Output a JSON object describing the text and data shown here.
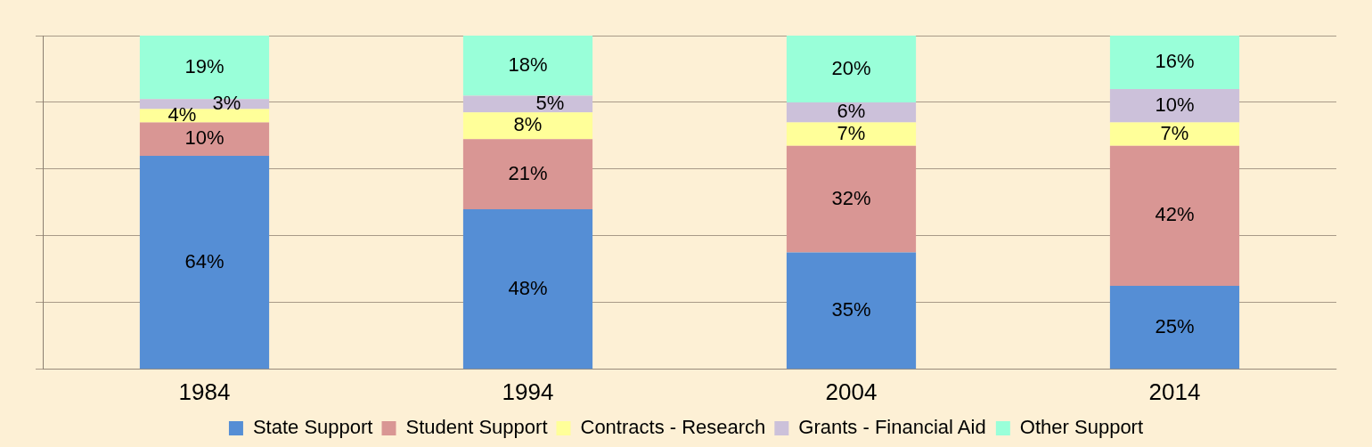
{
  "chart_data": {
    "type": "bar",
    "stacked": true,
    "categories": [
      "1984",
      "1994",
      "2004",
      "2014"
    ],
    "series": [
      {
        "name": "State Support",
        "color": "#558ed5",
        "values": [
          64,
          48,
          35,
          25
        ],
        "value_labels": [
          "64%",
          "48%",
          "35%",
          "25%"
        ]
      },
      {
        "name": "Student Support",
        "color": "#d99694",
        "values": [
          10,
          21,
          32,
          42
        ],
        "value_labels": [
          "10%",
          "21%",
          "32%",
          "42%"
        ]
      },
      {
        "name": "Contracts - Research",
        "color": "#ffff99",
        "values": [
          4,
          8,
          7,
          7
        ],
        "value_labels": [
          "4%",
          "8%",
          "7%",
          "7%"
        ]
      },
      {
        "name": "Grants - Financial Aid",
        "color": "#ccc1da",
        "values": [
          3,
          5,
          6,
          10
        ],
        "value_labels": [
          "3%",
          "5%",
          "6%",
          "10%"
        ]
      },
      {
        "name": "Other Support",
        "color": "#99ffd9",
        "values": [
          19,
          18,
          20,
          16
        ],
        "value_labels": [
          "19%",
          "18%",
          "20%",
          "16%"
        ]
      }
    ],
    "ylim": [
      0,
      100
    ],
    "yticks": [
      {
        "value": 0,
        "label": null
      },
      {
        "value": 20,
        "label": null
      },
      {
        "value": 40,
        "label": null
      },
      {
        "value": 60,
        "label": null
      },
      {
        "value": 80,
        "label": null
      },
      {
        "value": 100,
        "label": null
      }
    ],
    "grid": "y",
    "legend": "bottom",
    "tick_labels": "x"
  }
}
